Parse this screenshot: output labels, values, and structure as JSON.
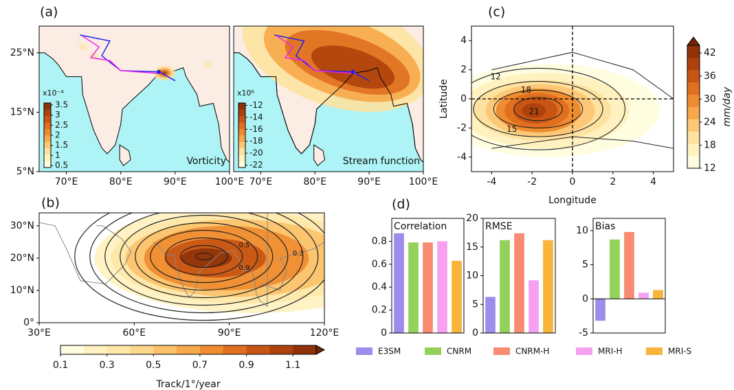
{
  "panel_labels": [
    "(a)",
    "(b)",
    "(c)",
    "(d)"
  ],
  "chart_data": [
    {
      "type": "map",
      "annotation": "Vorticity",
      "xlim": [
        65,
        100
      ],
      "ylim": [
        5,
        29.5
      ],
      "xticks": [
        {
          "value": 70,
          "label": "70°E"
        },
        {
          "value": 80,
          "label": "80°E"
        },
        {
          "value": 90,
          "label": "90°E"
        },
        {
          "value": 100,
          "label": "100°E"
        }
      ],
      "yticks": [
        {
          "value": 5,
          "label": "5°N"
        },
        {
          "value": 15,
          "label": "15°N"
        },
        {
          "value": 25,
          "label": "25°N"
        }
      ],
      "colorbar": {
        "exponent": "x10⁻⁴",
        "lim": [
          0.4,
          3.6
        ],
        "ticks": [
          0.5,
          1.0,
          1.5,
          2.0,
          2.5,
          3.0,
          3.5
        ],
        "colors": [
          "#fffde0",
          "#fff2c0",
          "#fde2a0",
          "#fcc878",
          "#f7a84a",
          "#ef8c30",
          "#e0701f",
          "#c85514",
          "#ad420c",
          "#8f320a"
        ]
      }
    },
    {
      "type": "map",
      "annotation": "Stream function",
      "xlim": [
        65,
        100
      ],
      "ylim": [
        5,
        29.5
      ],
      "xticks": [
        {
          "value": 70,
          "label": "70°E"
        },
        {
          "value": 80,
          "label": "80°E"
        },
        {
          "value": 90,
          "label": "90°E"
        },
        {
          "value": 100,
          "label": "100°E"
        }
      ],
      "colorbar": {
        "exponent": "x10⁶",
        "lim": [
          -22.4,
          -11.6
        ],
        "ticks": [
          -22,
          -20,
          -18,
          -16,
          -14,
          -12
        ],
        "colors": [
          "#fffde0",
          "#fff2c0",
          "#fde2a0",
          "#fcc878",
          "#f7a84a",
          "#ef8c30",
          "#e0701f",
          "#c85514",
          "#ad420c",
          "#8f320a"
        ]
      }
    },
    {
      "type": "map",
      "xlim": [
        30,
        120
      ],
      "ylim": [
        0,
        34
      ],
      "xticks": [
        {
          "value": 30,
          "label": "30°E"
        },
        {
          "value": 60,
          "label": "60°E"
        },
        {
          "value": 90,
          "label": "90°E"
        },
        {
          "value": 120,
          "label": "120°E"
        }
      ],
      "yticks": [
        {
          "value": 0,
          "label": "0°"
        },
        {
          "value": 10,
          "label": "10°N"
        },
        {
          "value": 20,
          "label": "20°N"
        },
        {
          "value": 30,
          "label": "30°N"
        }
      ],
      "contour_labels": [
        0.5,
        0.3,
        0.9
      ],
      "colorbar": {
        "label": "Track/1°/year",
        "lim": [
          0.1,
          1.2
        ],
        "ticks": [
          0.1,
          0.3,
          0.5,
          0.7,
          0.9,
          1.1
        ],
        "colors": [
          "#fffde0",
          "#fff2c0",
          "#ffe7a8",
          "#fdd78c",
          "#fcc26a",
          "#f7a84a",
          "#ef8c30",
          "#e0701f",
          "#c85514",
          "#ad420c",
          "#8f320a"
        ]
      }
    },
    {
      "type": "contour",
      "xlabel": "Longitude",
      "ylabel": "Latitude",
      "xlim": [
        -5,
        5
      ],
      "ylim": [
        -5,
        5
      ],
      "xticks": [
        -4,
        -2,
        0,
        2,
        4
      ],
      "yticks": [
        -4,
        -2,
        0,
        2,
        4
      ],
      "contour_levels": [
        12,
        18,
        21,
        15
      ],
      "colorbar": {
        "label": "mm/day",
        "lim": [
          12,
          44
        ],
        "ticks": [
          12,
          18,
          24,
          30,
          36,
          42
        ],
        "colors": [
          "#fffde0",
          "#fff2c0",
          "#fde2a0",
          "#fcc878",
          "#f7a84a",
          "#ef8c30",
          "#e0701f",
          "#c85514",
          "#ad420c",
          "#8f320a"
        ]
      }
    },
    {
      "type": "bar",
      "title": "Correlation",
      "categories": [
        "E3SM",
        "CNRM",
        "CNRM-H",
        "MRI-H",
        "MRI-S"
      ],
      "values": [
        0.87,
        0.79,
        0.79,
        0.8,
        0.63
      ],
      "colors": [
        "#9d8ceb",
        "#93d15a",
        "#f88b72",
        "#f6a0f2",
        "#f9b43a"
      ],
      "ylim": [
        0,
        1.0
      ],
      "yticks": [
        0.0,
        0.2,
        0.4,
        0.6,
        0.8
      ]
    },
    {
      "type": "bar",
      "title": "RMSE",
      "categories": [
        "E3SM",
        "CNRM",
        "CNRM-H",
        "MRI-H",
        "MRI-S"
      ],
      "values": [
        6.3,
        16.2,
        17.4,
        9.2,
        16.2
      ],
      "colors": [
        "#9d8ceb",
        "#93d15a",
        "#f88b72",
        "#f6a0f2",
        "#f9b43a"
      ],
      "ylim": [
        0,
        20
      ],
      "yticks": [
        0,
        5,
        10,
        15,
        20
      ]
    },
    {
      "type": "bar",
      "title": "Bias",
      "categories": [
        "E3SM",
        "CNRM",
        "CNRM-H",
        "MRI-H",
        "MRI-S"
      ],
      "values": [
        -3.2,
        8.7,
        9.8,
        0.9,
        1.3
      ],
      "colors": [
        "#9d8ceb",
        "#93d15a",
        "#f88b72",
        "#f6a0f2",
        "#f9b43a"
      ],
      "ylim": [
        -5,
        11.8
      ],
      "yticks": [
        -5,
        0,
        5,
        10
      ]
    }
  ]
}
